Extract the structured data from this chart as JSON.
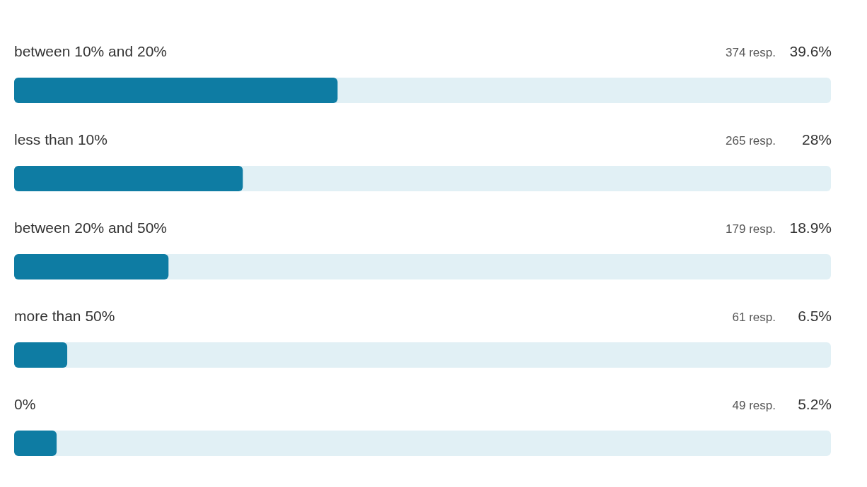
{
  "chart_data": {
    "type": "bar",
    "orientation": "horizontal",
    "categories": [
      "between 10% and 20%",
      "less than 10%",
      "between 20% and 50%",
      "more than 50%",
      "0%"
    ],
    "values": [
      39.6,
      28,
      18.9,
      6.5,
      5.2
    ],
    "value_labels": [
      "39.6%",
      "28%",
      "18.9%",
      "6.5%",
      "5.2%"
    ],
    "color": "#0e7ca3",
    "xlim": [
      0,
      100
    ],
    "annotations": [
      "374 resp.",
      "265 resp.",
      "179 resp.",
      "61 resp.",
      "49 resp."
    ]
  }
}
